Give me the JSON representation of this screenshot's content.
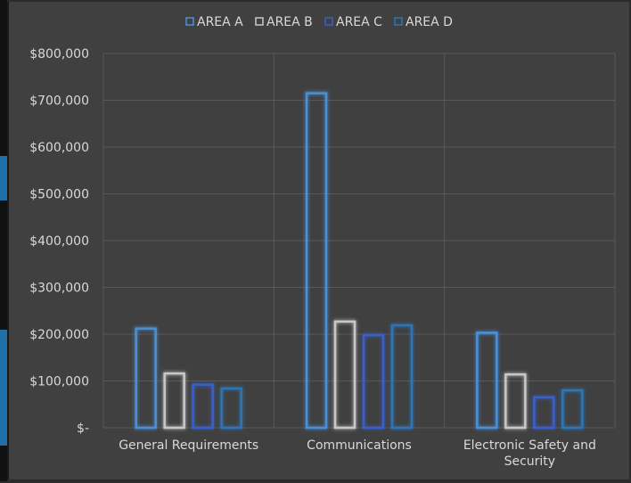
{
  "colors": {
    "background": "#404040",
    "grid": "#595959",
    "text": "#d9d9d9",
    "series": [
      "#4a90d9",
      "#c8c8c8",
      "#3a5fc8",
      "#2e75b6"
    ]
  },
  "chart_data": {
    "type": "bar",
    "title": "",
    "xlabel": "",
    "ylabel": "",
    "legend_position": "top",
    "grid": true,
    "ylim": [
      0,
      800000
    ],
    "y_tick_labels": [
      "$-",
      "$100,000",
      "$200,000",
      "$300,000",
      "$400,000",
      "$500,000",
      "$600,000",
      "$700,000",
      "$800,000"
    ],
    "categories": [
      [
        "General Requirements"
      ],
      [
        "Communications"
      ],
      [
        "Electronic Safety and",
        "Security"
      ]
    ],
    "series": [
      {
        "name": "AREA A",
        "values": [
          212000,
          715000,
          203000
        ]
      },
      {
        "name": "AREA B",
        "values": [
          116000,
          227000,
          114000
        ]
      },
      {
        "name": "AREA C",
        "values": [
          92000,
          198000,
          65000
        ]
      },
      {
        "name": "AREA D",
        "values": [
          84000,
          219000,
          80000
        ]
      }
    ]
  }
}
